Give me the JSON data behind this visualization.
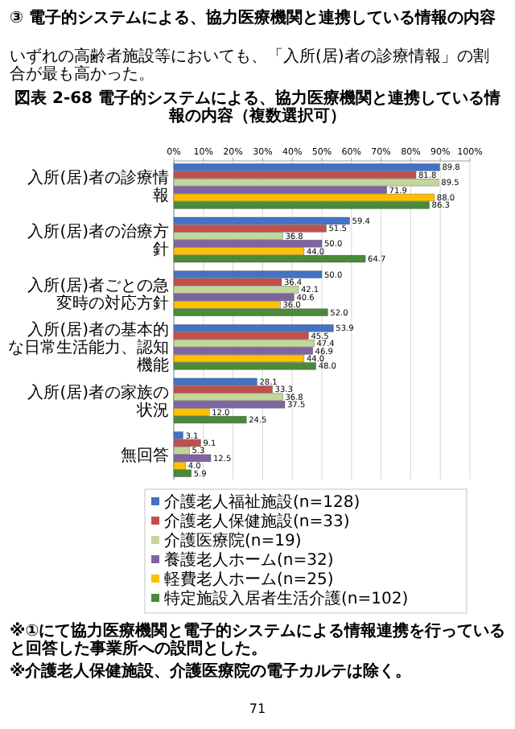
{
  "chart_data": {
    "type": "bar",
    "orientation": "horizontal",
    "title": "図表 2-68 電子的システムによる、協力医療機関と連携している情報の内容（複数選択可）",
    "annotations": [
      "③ 電子的システムによる、協力医療機関と連携している情報の内容",
      "いずれの高齢者施設等においても、「入所(居)者の診療情報」の割合が最も高かった。",
      "※①にて協力医療機関と電子的システムによる情報連携を行っていると回答した事業所への設問とした。",
      "※介護老人保健施設、介護医療院の電子カルテは除く。",
      "71"
    ],
    "categories": [
      "入所(居)者の診療情報",
      "入所(居)者の治療方針",
      "入所(居)者ごとの急変時の対応方針",
      "入所(居)者の基本的な日常生活能力、認知機能",
      "入所(居)者の家族の状況",
      "無回答"
    ],
    "series": [
      {
        "name": "介護老人福祉施設(n=128)",
        "color": "#4472c4",
        "values": [
          89.8,
          59.4,
          50.0,
          53.9,
          28.1,
          3.1
        ],
        "value_labels": [
          "89.8",
          "59.4",
          "50.0",
          "53.9",
          "28.1",
          "3.1"
        ]
      },
      {
        "name": "介護老人保健施設(n=33)",
        "color": "#c0504d",
        "values": [
          81.8,
          51.5,
          36.4,
          45.5,
          33.3,
          9.1
        ],
        "value_labels": [
          "81.8",
          "51.5",
          "36.4",
          "45.5",
          "33.3",
          "9.1"
        ]
      },
      {
        "name": "介護医療院(n=19)",
        "color": "#c3d69b",
        "values": [
          89.5,
          36.8,
          42.1,
          47.4,
          36.8,
          5.3
        ],
        "value_labels": [
          "89.5",
          "36.8",
          "42.1",
          "47.4",
          "36.8",
          "5.3"
        ]
      },
      {
        "name": "養護老人ホーム(n=32)",
        "color": "#8064a2",
        "values": [
          71.9,
          50.0,
          40.6,
          46.9,
          37.5,
          12.5
        ],
        "value_labels": [
          "71.9",
          "50.0",
          "40.6",
          "46.9",
          "37.5",
          "12.5"
        ]
      },
      {
        "name": "軽費老人ホーム(n=25)",
        "color": "#ffc000",
        "values": [
          88.0,
          44.0,
          36.0,
          44.0,
          12.0,
          4.0
        ],
        "value_labels": [
          "88.0",
          "44.0",
          "36.0",
          "44.0",
          "12.0",
          "4.0"
        ]
      },
      {
        "name": "特定施設入居者生活介護(n=102)",
        "color": "#4a8a3a",
        "values": [
          86.3,
          64.7,
          52.0,
          48.0,
          24.5,
          5.9
        ],
        "value_labels": [
          "86.3",
          "64.7",
          "52.0",
          "48.0",
          "24.5",
          "5.9"
        ]
      }
    ],
    "xlim": [
      0,
      100
    ],
    "xticks": [
      {
        "value": 0,
        "label": "0%"
      },
      {
        "value": 10,
        "label": "10%"
      },
      {
        "value": 20,
        "label": "20%"
      },
      {
        "value": 30,
        "label": "30%"
      },
      {
        "value": 40,
        "label": "40%"
      },
      {
        "value": 50,
        "label": "50%"
      },
      {
        "value": 60,
        "label": "60%"
      },
      {
        "value": 70,
        "label": "70%"
      },
      {
        "value": 80,
        "label": "80%"
      },
      {
        "value": 90,
        "label": "90%"
      },
      {
        "value": 100,
        "label": "100%"
      }
    ],
    "grid": "x",
    "legend": "bottom"
  }
}
